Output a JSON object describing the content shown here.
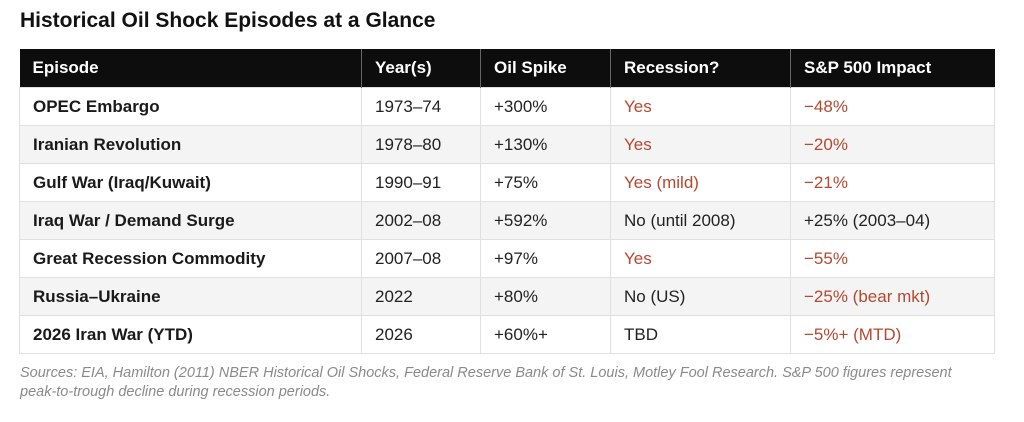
{
  "title": "Historical Oil Shock Episodes at a Glance",
  "table": {
    "headers": [
      "Episode",
      "Year(s)",
      "Oil Spike",
      "Recession?",
      "S&P 500 Impact"
    ],
    "rows": [
      {
        "episode": "OPEC Embargo",
        "years": "1973–74",
        "oil_spike": "+300%",
        "recession": "Yes",
        "sp500": "−48%"
      },
      {
        "episode": "Iranian Revolution",
        "years": "1978–80",
        "oil_spike": "+130%",
        "recession": "Yes",
        "sp500": "−20%"
      },
      {
        "episode": "Gulf War (Iraq/Kuwait)",
        "years": "1990–91",
        "oil_spike": "+75%",
        "recession": "Yes (mild)",
        "sp500": "−21%"
      },
      {
        "episode": "Iraq War / Demand Surge",
        "years": "2002–08",
        "oil_spike": "+592%",
        "recession": "No (until 2008)",
        "sp500": "+25% (2003–04)"
      },
      {
        "episode": "Great Recession Commodity",
        "years": "2007–08",
        "oil_spike": "+97%",
        "recession": "Yes",
        "sp500": "−55%"
      },
      {
        "episode": "Russia–Ukraine",
        "years": "2022",
        "oil_spike": "+80%",
        "recession": "No (US)",
        "sp500": "−25% (bear mkt)"
      },
      {
        "episode": "2026 Iran War (YTD)",
        "years": "2026",
        "oil_spike": "+60%+",
        "recession": "TBD",
        "sp500": "−5%+ (MTD)"
      }
    ]
  },
  "colors": {
    "header_bg": "#0d0d0d",
    "negative_text": "#b5482f",
    "alt_row_bg": "#f4f4f4"
  },
  "footnote": "Sources: EIA, Hamilton (2011) NBER Historical Oil Shocks, Federal Reserve Bank of St. Louis, Motley Fool Research. S&P 500 figures represent peak-to-trough decline during recession periods."
}
